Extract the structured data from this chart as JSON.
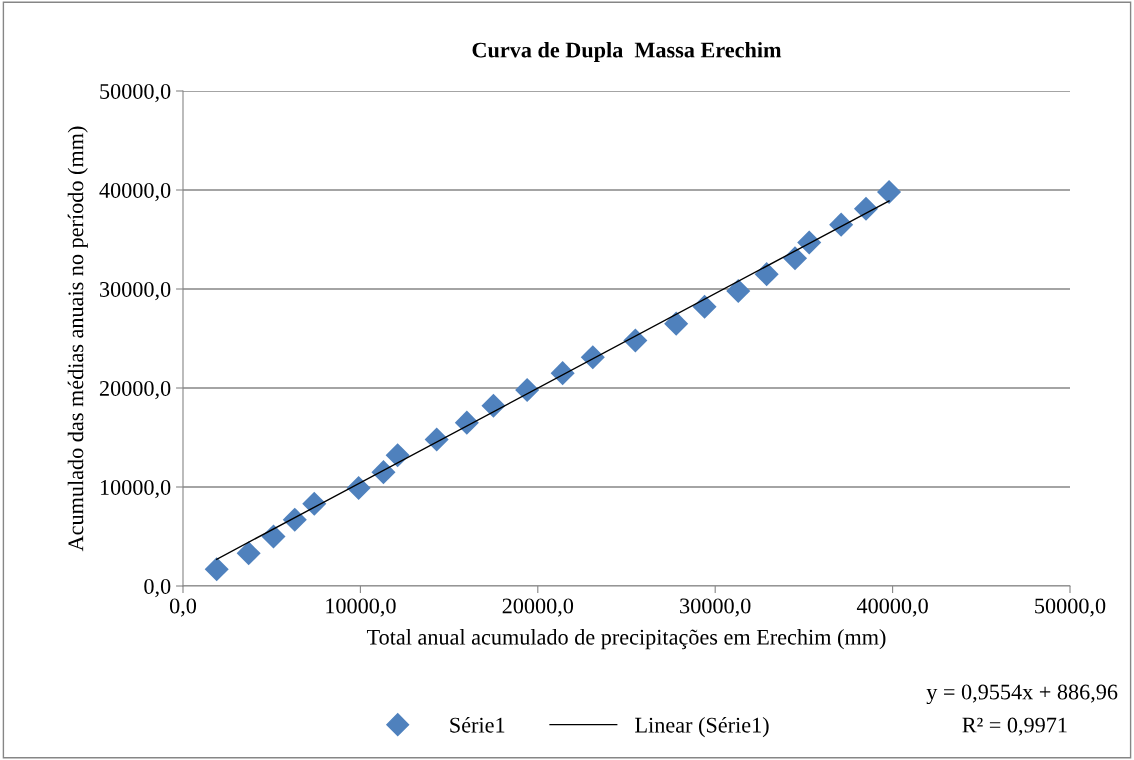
{
  "chart_data": {
    "type": "scatter",
    "title": "Curva de Dupla  Massa Erechim",
    "xlabel": "Total anual acumulado de precipitações em Erechim (mm)",
    "ylabel": "Acumulado das médias anuais no período (mm)",
    "xlim": [
      0,
      50000
    ],
    "ylim": [
      0,
      50000
    ],
    "xticks": [
      {
        "value": 0,
        "label": "0,0"
      },
      {
        "value": 10000,
        "label": "10000,0"
      },
      {
        "value": 20000,
        "label": "20000,0"
      },
      {
        "value": 30000,
        "label": "30000,0"
      },
      {
        "value": 40000,
        "label": "40000,0"
      },
      {
        "value": 50000,
        "label": "50000,0"
      }
    ],
    "yticks": [
      {
        "value": 0,
        "label": "0,0"
      },
      {
        "value": 10000,
        "label": "10000,0"
      },
      {
        "value": 20000,
        "label": "20000,0"
      },
      {
        "value": 30000,
        "label": "30000,0"
      },
      {
        "value": 40000,
        "label": "40000,0"
      },
      {
        "value": 50000,
        "label": "50000,0"
      }
    ],
    "grid": "y",
    "legend": "bottom",
    "series": [
      {
        "name": "Série1",
        "marker": "diamond",
        "color": "#4f81bd",
        "x": [
          1900,
          3700,
          5100,
          6300,
          7400,
          9900,
          11300,
          12100,
          14300,
          16000,
          17500,
          19400,
          21400,
          23100,
          25500,
          27800,
          29400,
          31300,
          32900,
          34500,
          35300,
          37100,
          38500,
          39800
        ],
        "values": [
          1700,
          3300,
          5000,
          6700,
          8300,
          9900,
          11500,
          13200,
          14800,
          16500,
          18200,
          19800,
          21500,
          23100,
          24800,
          26500,
          28200,
          29800,
          31500,
          33100,
          34700,
          36500,
          38100,
          39800
        ]
      },
      {
        "name": "Linear (Série1)",
        "type": "line",
        "marker": "none",
        "color": "#000000",
        "x": [
          1900,
          39800
        ],
        "values": [
          2700,
          38900
        ]
      }
    ],
    "annotations": [
      "y = 0,9554x + 886,96",
      "R² = 0,9971"
    ]
  }
}
